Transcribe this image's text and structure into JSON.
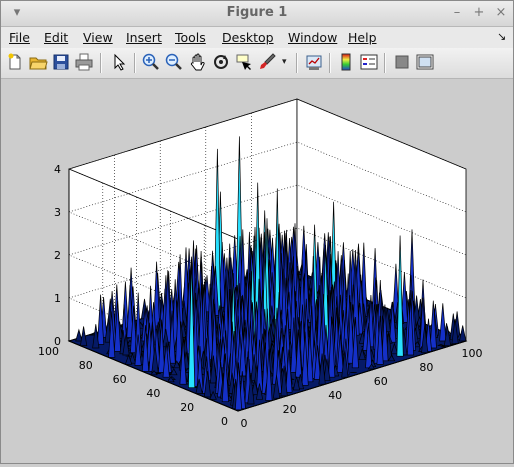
{
  "window": {
    "title": "Figure 1"
  },
  "menu": [
    "File",
    "Edit",
    "View",
    "Insert",
    "Tools",
    "Desktop",
    "Window",
    "Help"
  ],
  "toolbar_icons": [
    "new-figure-icon",
    "open-file-icon",
    "save-icon",
    "print-icon",
    "select-arrow-icon",
    "zoom-in-icon",
    "zoom-out-icon",
    "pan-hand-icon",
    "rotate-3d-icon",
    "data-cursor-icon",
    "brush-icon",
    "brush-dropdown-icon",
    "link-plot-icon",
    "colorbar-icon",
    "legend-icon",
    "hide-plot-tools-icon",
    "show-plot-tools-icon"
  ],
  "colors": {
    "surface_edge": "#000000",
    "surface_low": "#061a66",
    "surface_mid": "#1430c8",
    "surface_high": "#28e0ff",
    "axes_bg": "#ffffff",
    "figure_bg": "#cccccc"
  },
  "chart_data": {
    "type": "surface",
    "title": "",
    "xlabel": "",
    "ylabel": "",
    "zlabel": "",
    "x_ticks": [
      "0",
      "20",
      "40",
      "60",
      "80",
      "100"
    ],
    "y_ticks": [
      "0",
      "20",
      "40",
      "60",
      "80",
      "100"
    ],
    "z_ticks": [
      "0",
      "1",
      "2",
      "3",
      "4"
    ],
    "xlim": [
      0,
      100
    ],
    "ylim": [
      0,
      100
    ],
    "zlim": [
      0,
      4
    ],
    "grid": true,
    "description_of_data": "random sparse spikes"
  }
}
